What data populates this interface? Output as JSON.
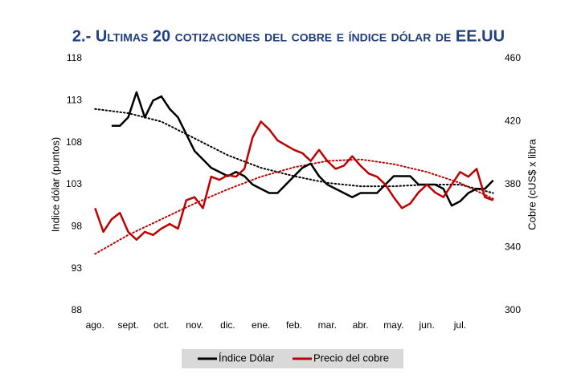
{
  "chart_data": {
    "type": "line",
    "title": "2.- Ultimas 20 cotizaciones del cobre e índice dólar de EE.UU",
    "ylabel": "Indice dólar (puntos)",
    "y2label": "Cobre (cUS$ x libra",
    "xlim": [
      -0.2,
      12.2
    ],
    "xticks": [
      {
        "value": 0,
        "label": "ago."
      },
      {
        "value": 1,
        "label": "sept."
      },
      {
        "value": 2,
        "label": "oct."
      },
      {
        "value": 3,
        "label": "nov."
      },
      {
        "value": 4,
        "label": "dic."
      },
      {
        "value": 5,
        "label": "ene."
      },
      {
        "value": 6,
        "label": "feb."
      },
      {
        "value": 7,
        "label": "mar."
      },
      {
        "value": 8,
        "label": "abr."
      },
      {
        "value": 9,
        "label": "may."
      },
      {
        "value": 10,
        "label": "jun."
      },
      {
        "value": 11,
        "label": "jul."
      }
    ],
    "ylim": [
      88,
      118
    ],
    "yticks": [
      88,
      93,
      98,
      103,
      108,
      113,
      118
    ],
    "y2lim": [
      300,
      460
    ],
    "y2ticks": [
      300,
      340,
      380,
      420,
      460
    ],
    "series": [
      {
        "name": "Índice Dólar",
        "color": "#000000",
        "axis": "y",
        "x": [
          0.5,
          0.75,
          1,
          1.25,
          1.5,
          1.75,
          2,
          2.25,
          2.5,
          2.75,
          3,
          3.25,
          3.5,
          3.75,
          4,
          4.25,
          4.5,
          4.75,
          5,
          5.25,
          5.5,
          5.75,
          6,
          6.25,
          6.5,
          6.75,
          7,
          7.25,
          7.5,
          7.75,
          8,
          8.25,
          8.5,
          8.75,
          9,
          9.25,
          9.5,
          9.75,
          10,
          10.25,
          10.5,
          10.75,
          11,
          11.25,
          11.5,
          11.75,
          12
        ],
        "values": [
          110,
          110,
          111,
          114,
          111,
          113,
          113.5,
          112,
          111,
          109,
          107,
          106,
          105,
          104.5,
          104,
          104.5,
          104,
          103,
          102.5,
          102,
          102,
          103,
          104,
          105,
          105.5,
          104,
          103,
          102.5,
          102,
          101.5,
          102,
          102,
          102,
          103,
          104,
          104,
          104,
          103,
          103,
          103,
          102.5,
          100.5,
          101,
          102,
          102.5,
          102.5,
          103.5
        ]
      },
      {
        "name": "Precio del cobre",
        "color": "#c00000",
        "axis": "y2",
        "x": [
          0,
          0.25,
          0.5,
          0.75,
          1,
          1.25,
          1.5,
          1.75,
          2,
          2.25,
          2.5,
          2.75,
          3,
          3.25,
          3.5,
          3.75,
          4,
          4.25,
          4.5,
          4.75,
          5,
          5.25,
          5.5,
          5.75,
          6,
          6.25,
          6.5,
          6.75,
          7,
          7.25,
          7.5,
          7.75,
          8,
          8.25,
          8.5,
          8.75,
          9,
          9.25,
          9.5,
          9.75,
          10,
          10.25,
          10.5,
          10.75,
          11,
          11.25,
          11.5,
          11.75,
          12
        ],
        "values": [
          365,
          350,
          358,
          362,
          350,
          345,
          350,
          348,
          352,
          355,
          352,
          370,
          372,
          365,
          385,
          383,
          386,
          385,
          390,
          410,
          420,
          415,
          408,
          405,
          402,
          400,
          395,
          402,
          395,
          390,
          392,
          398,
          392,
          387,
          385,
          380,
          372,
          365,
          368,
          375,
          380,
          375,
          372,
          380,
          388,
          385,
          390,
          372,
          370
        ]
      }
    ],
    "trendlines": [
      {
        "color": "#000000",
        "axis": "y",
        "x": [
          0,
          1,
          2,
          3,
          4,
          5,
          6,
          7,
          8,
          9,
          10,
          11,
          12
        ],
        "values": [
          112,
          111.5,
          110.5,
          108.5,
          106.5,
          105,
          104,
          103.2,
          102.8,
          102.8,
          103,
          103,
          102
        ]
      },
      {
        "color": "#c00000",
        "axis": "y2",
        "x": [
          0,
          1,
          2,
          3,
          4,
          5,
          6,
          7,
          8,
          9,
          10,
          11,
          12
        ],
        "values": [
          336,
          348,
          358,
          368,
          377,
          385,
          391,
          395,
          396,
          393,
          388,
          381,
          371
        ]
      }
    ]
  }
}
